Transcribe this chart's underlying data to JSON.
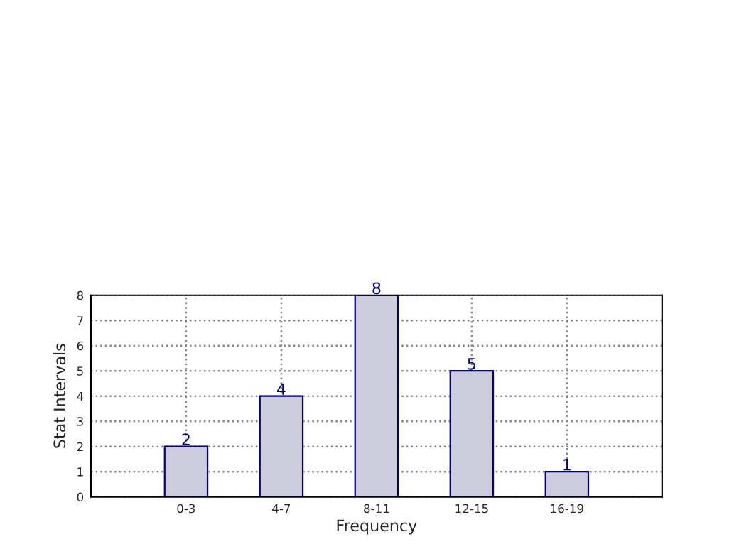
{
  "chart_data": {
    "type": "bar",
    "xlabel": "Frequency",
    "ylabel": "Stat Intervals",
    "categories": [
      "0-3",
      "4-7",
      "8-11",
      "12-15",
      "16-19"
    ],
    "values": [
      2,
      4,
      8,
      5,
      1
    ],
    "color": "#ccccdd",
    "ylim": [
      0,
      8
    ],
    "yticks": [
      0,
      1,
      2,
      3,
      4,
      5,
      6,
      7,
      8
    ],
    "grid": true,
    "data_labels": true
  }
}
